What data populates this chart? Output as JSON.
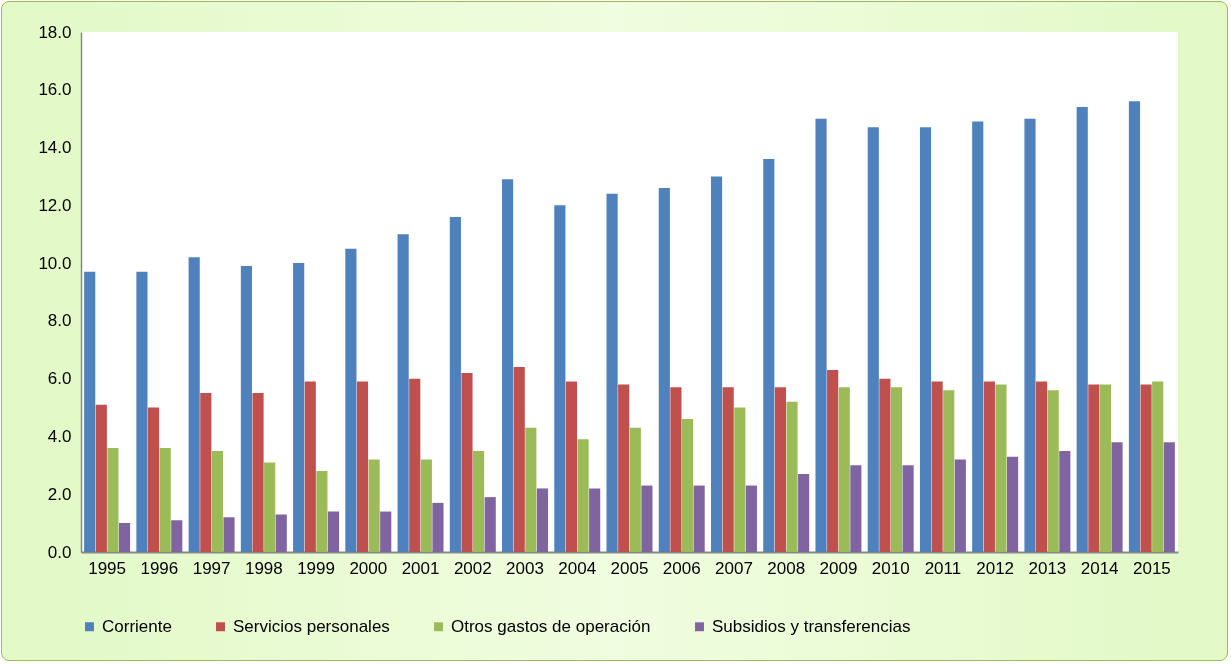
{
  "chart_data": {
    "type": "bar",
    "categories": [
      "1995",
      "1996",
      "1997",
      "1998",
      "1999",
      "2000",
      "2001",
      "2002",
      "2003",
      "2004",
      "2005",
      "2006",
      "2007",
      "2008",
      "2009",
      "2010",
      "2011",
      "2012",
      "2013",
      "2014",
      "2015"
    ],
    "series": [
      {
        "name": "Corriente",
        "color": "#4f81bd",
        "values": [
          9.7,
          9.7,
          10.2,
          9.9,
          10.0,
          10.5,
          11.0,
          11.6,
          12.9,
          12.0,
          12.4,
          12.6,
          13.0,
          13.6,
          15.0,
          14.7,
          14.7,
          14.9,
          15.0,
          15.4,
          15.6
        ]
      },
      {
        "name": "Servicios personales",
        "color": "#c0504d",
        "values": [
          5.1,
          5.0,
          5.5,
          5.5,
          5.9,
          5.9,
          6.0,
          6.2,
          6.4,
          5.9,
          5.8,
          5.7,
          5.7,
          5.7,
          6.3,
          6.0,
          5.9,
          5.9,
          5.9,
          5.8,
          5.8
        ]
      },
      {
        "name": "Otros gastos de operación",
        "color": "#9bbb59",
        "values": [
          3.6,
          3.6,
          3.5,
          3.1,
          2.8,
          3.2,
          3.2,
          3.5,
          4.3,
          3.9,
          4.3,
          4.6,
          5.0,
          5.2,
          5.7,
          5.7,
          5.6,
          5.8,
          5.6,
          5.8,
          5.9
        ]
      },
      {
        "name": "Subsidios y transferencias",
        "color": "#8064a2",
        "values": [
          1.0,
          1.1,
          1.2,
          1.3,
          1.4,
          1.4,
          1.7,
          1.9,
          2.2,
          2.2,
          2.3,
          2.3,
          2.3,
          2.7,
          3.0,
          3.0,
          3.2,
          3.3,
          3.5,
          3.8,
          3.8
        ]
      }
    ],
    "ylim": [
      0,
      18
    ],
    "yticks": [
      {
        "value": 0,
        "label": "0.0"
      },
      {
        "value": 2,
        "label": "2.0"
      },
      {
        "value": 4,
        "label": "4.0"
      },
      {
        "value": 6,
        "label": "6.0"
      },
      {
        "value": 8,
        "label": "8.0"
      },
      {
        "value": 10,
        "label": "10.0"
      },
      {
        "value": 12,
        "label": "12.0"
      },
      {
        "value": 14,
        "label": "14.0"
      },
      {
        "value": 16,
        "label": "16.0"
      },
      {
        "value": 18,
        "label": "18.0"
      }
    ],
    "grid": false,
    "legend": "bottom"
  }
}
